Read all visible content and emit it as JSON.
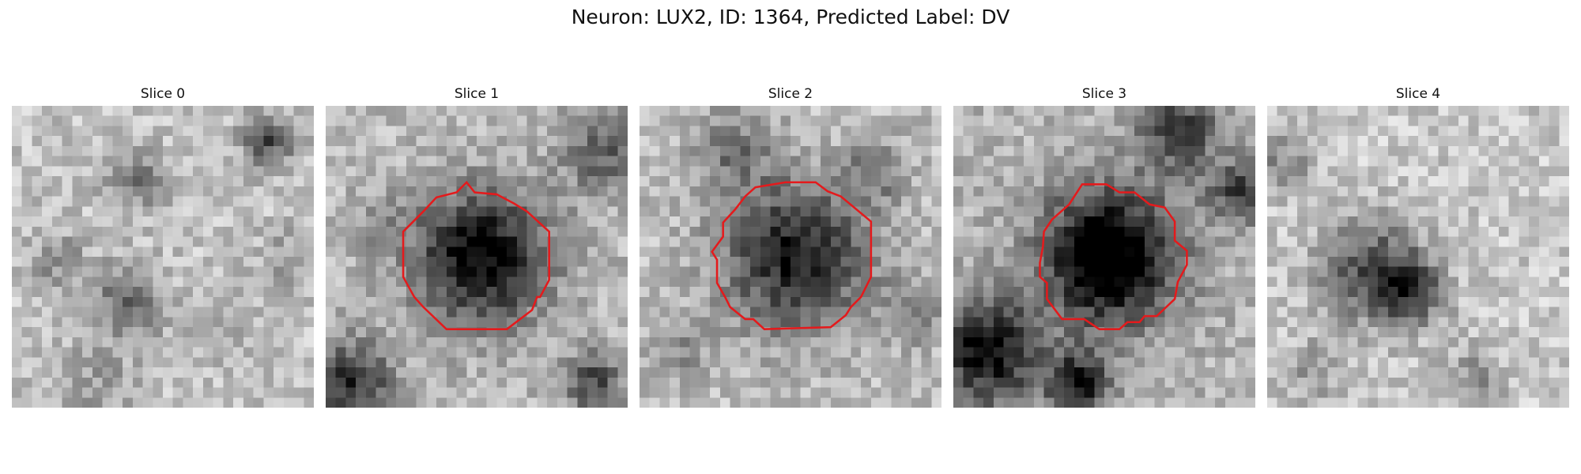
{
  "figure": {
    "title": "Neuron: LUX2, ID: 1364, Predicted Label: DV"
  },
  "slices": [
    {
      "title": "Slice 0",
      "has_roi": false
    },
    {
      "title": "Slice 1",
      "has_roi": true
    },
    {
      "title": "Slice 2",
      "has_roi": true
    },
    {
      "title": "Slice 3",
      "has_roi": true
    },
    {
      "title": "Slice 4",
      "has_roi": false
    }
  ],
  "colors": {
    "roi_outline": "#e41a1c",
    "colormap": "gray"
  }
}
